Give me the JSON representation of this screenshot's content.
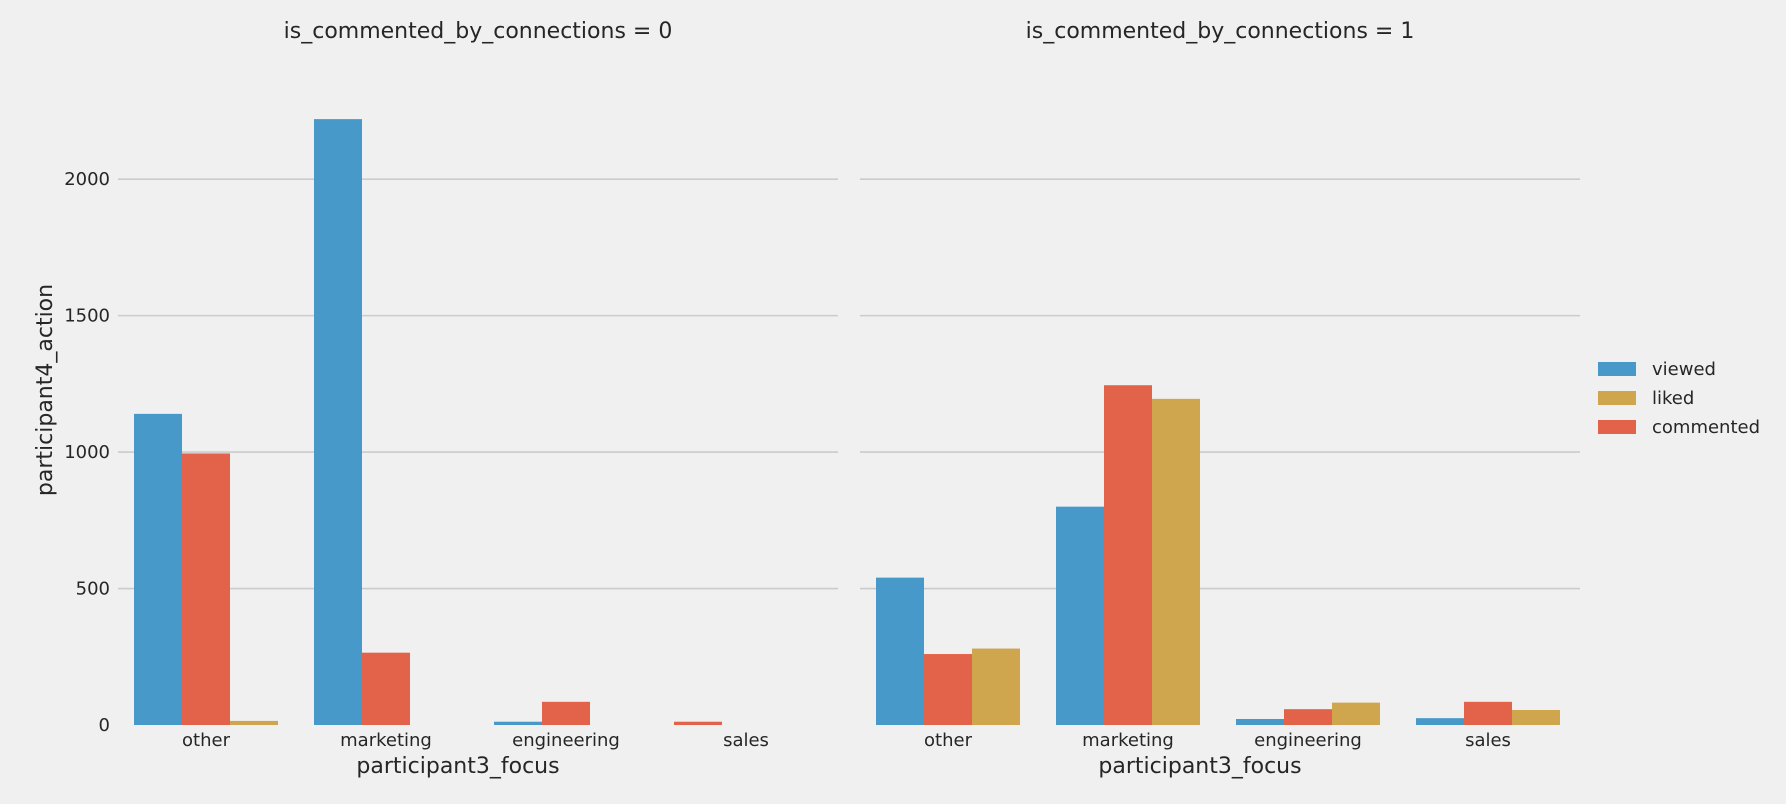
{
  "chart_data": {
    "type": "bar",
    "ylabel": "participant4_action",
    "ylim": [
      0,
      2400
    ],
    "yticks": [
      "0",
      "500",
      "1000",
      "1500",
      "2000"
    ],
    "grid": true,
    "legend_placement": "right",
    "legend": [
      {
        "name": "viewed",
        "color": "#4699c8"
      },
      {
        "name": "liked",
        "color": "#cfa54d"
      },
      {
        "name": "commented",
        "color": "#e3624a"
      }
    ],
    "panels": [
      {
        "title": "is_commented_by_connections = 0",
        "xlabel": "participant3_focus",
        "categories": [
          "other",
          "marketing",
          "engineering",
          "sales"
        ],
        "bars": [
          {
            "category": "other",
            "slots": [
              {
                "series": "viewed",
                "value": 1140
              },
              {
                "series": "commented",
                "value": 995
              },
              {
                "series": "liked",
                "value": 15
              }
            ]
          },
          {
            "category": "marketing",
            "slots": [
              {
                "series": "viewed",
                "value": 2220
              },
              {
                "series": "commented",
                "value": 265
              }
            ]
          },
          {
            "category": "engineering",
            "slots": [
              {
                "series": "viewed",
                "value": 12
              },
              {
                "series": "commented",
                "value": 85
              }
            ]
          },
          {
            "category": "sales",
            "slots": [
              {
                "series": "commented",
                "value": 12
              }
            ]
          }
        ]
      },
      {
        "title": "is_commented_by_connections = 1",
        "xlabel": "participant3_focus",
        "categories": [
          "other",
          "marketing",
          "engineering",
          "sales"
        ],
        "bars": [
          {
            "category": "other",
            "slots": [
              {
                "series": "viewed",
                "value": 540
              },
              {
                "series": "commented",
                "value": 260
              },
              {
                "series": "liked",
                "value": 280
              }
            ]
          },
          {
            "category": "marketing",
            "slots": [
              {
                "series": "viewed",
                "value": 800
              },
              {
                "series": "commented",
                "value": 1245
              },
              {
                "series": "liked",
                "value": 1195
              }
            ]
          },
          {
            "category": "engineering",
            "slots": [
              {
                "series": "viewed",
                "value": 22
              },
              {
                "series": "commented",
                "value": 58
              },
              {
                "series": "liked",
                "value": 82
              }
            ]
          },
          {
            "category": "sales",
            "slots": [
              {
                "series": "viewed",
                "value": 25
              },
              {
                "series": "commented",
                "value": 85
              },
              {
                "series": "liked",
                "value": 55
              }
            ]
          }
        ]
      }
    ]
  }
}
